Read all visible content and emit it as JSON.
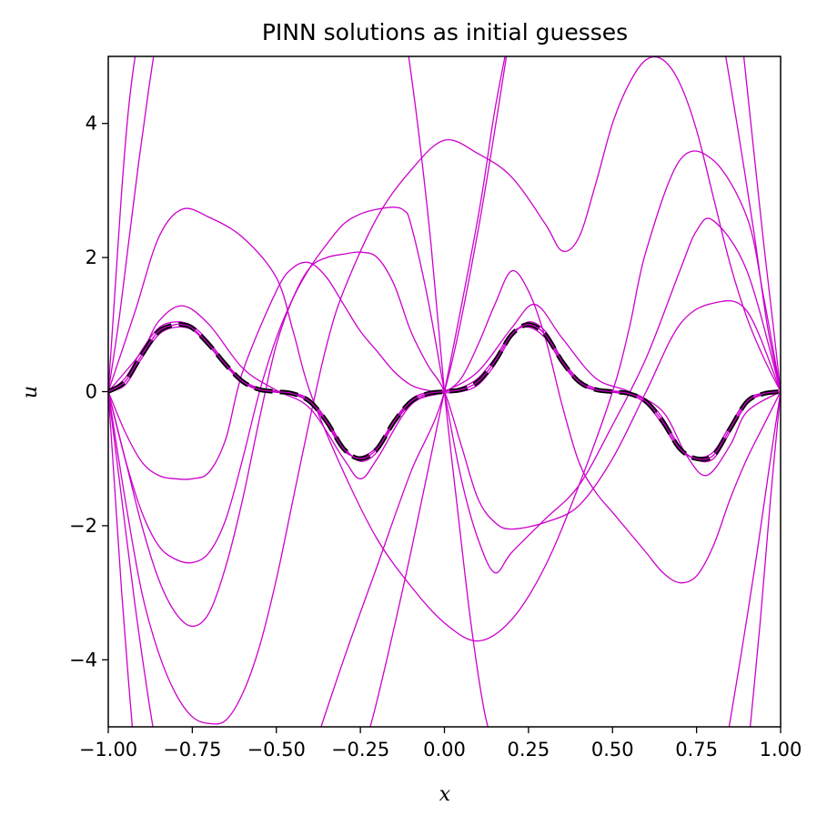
{
  "chart_data": {
    "type": "line",
    "title": "PINN solutions as initial guesses",
    "xlabel": "x",
    "ylabel": "u",
    "xlim": [
      -1.0,
      1.0
    ],
    "ylim": [
      -5,
      5
    ],
    "xticks": [
      -1.0,
      -0.75,
      -0.5,
      -0.25,
      0.0,
      0.25,
      0.5,
      0.75,
      1.0
    ],
    "xtick_labels": [
      "−1.00",
      "−0.75",
      "−0.50",
      "−0.25",
      "0.00",
      "0.25",
      "0.50",
      "0.75",
      "1.00"
    ],
    "yticks": [
      -4,
      -2,
      0,
      2,
      4
    ],
    "ytick_labels": [
      "−4",
      "−2",
      "0",
      "2",
      "4"
    ],
    "grid": false,
    "reference_color": "#000000",
    "guess_color": "#cc00cc",
    "reference": {
      "style": "dashed",
      "x": [
        -1.0,
        -0.95,
        -0.9,
        -0.85,
        -0.8,
        -0.78,
        -0.75,
        -0.7,
        -0.65,
        -0.6,
        -0.55,
        -0.5,
        -0.45,
        -0.4,
        -0.35,
        -0.3,
        -0.25,
        -0.2,
        -0.15,
        -0.1,
        -0.05,
        0.0,
        0.05,
        0.1,
        0.15,
        0.2,
        0.25,
        0.3,
        0.35,
        0.4,
        0.45,
        0.5,
        0.55,
        0.6,
        0.65,
        0.7,
        0.75,
        0.8,
        0.85,
        0.9,
        0.95,
        1.0
      ],
      "y": [
        0.0,
        0.15,
        0.55,
        0.9,
        1.0,
        1.0,
        0.95,
        0.7,
        0.4,
        0.15,
        0.03,
        0.0,
        -0.03,
        -0.15,
        -0.45,
        -0.85,
        -1.0,
        -0.85,
        -0.45,
        -0.15,
        -0.03,
        0.0,
        0.03,
        0.15,
        0.45,
        0.85,
        1.0,
        0.85,
        0.45,
        0.15,
        0.03,
        0.0,
        -0.03,
        -0.15,
        -0.45,
        -0.85,
        -1.0,
        -0.95,
        -0.55,
        -0.15,
        -0.03,
        0.0
      ]
    },
    "series": [
      {
        "x": [
          -1.0,
          -0.9,
          -0.85,
          -0.78,
          -0.7,
          -0.6,
          -0.5,
          -0.4,
          -0.3,
          -0.25,
          -0.2,
          -0.1,
          0.0,
          0.1,
          0.2,
          0.27,
          0.35,
          0.45,
          0.55,
          0.65,
          0.72,
          0.78,
          0.85,
          0.9,
          1.0
        ],
        "y": [
          0.0,
          0.6,
          1.05,
          1.28,
          1.0,
          0.35,
          0.02,
          -0.25,
          -1.0,
          -1.3,
          -1.0,
          -0.2,
          0.0,
          0.3,
          0.95,
          1.3,
          0.8,
          0.2,
          0.0,
          -0.3,
          -0.95,
          -1.25,
          -0.8,
          -0.3,
          0.0
        ]
      },
      {
        "x": [
          -1.0,
          -0.95,
          -0.9,
          -0.85,
          -0.8,
          -0.75,
          -0.7,
          -0.65,
          -0.6,
          -0.55,
          -0.5,
          -0.45,
          -0.4,
          -0.35,
          -0.3,
          -0.25,
          -0.2,
          -0.15,
          -0.1,
          -0.05,
          0.0,
          0.05,
          0.1,
          0.15,
          0.2,
          0.25,
          0.3,
          0.35,
          0.4,
          0.45,
          0.5,
          0.55,
          0.6,
          0.65,
          0.7,
          0.75,
          0.8,
          0.85,
          0.9,
          0.95,
          1.0
        ],
        "y": [
          0.0,
          0.1,
          0.5,
          0.85,
          0.96,
          0.92,
          0.68,
          0.38,
          0.14,
          0.02,
          -0.01,
          -0.04,
          -0.17,
          -0.48,
          -0.88,
          -0.97,
          -0.82,
          -0.43,
          -0.12,
          -0.01,
          0.02,
          0.06,
          0.2,
          0.5,
          0.88,
          0.96,
          0.8,
          0.42,
          0.12,
          0.02,
          -0.01,
          -0.05,
          -0.18,
          -0.5,
          -0.88,
          -0.98,
          -0.9,
          -0.5,
          -0.12,
          -0.02,
          0.0
        ]
      },
      {
        "x": [
          -1.0,
          -0.95,
          -0.9,
          -0.85,
          -0.8,
          -0.75,
          -0.7,
          -0.65,
          -0.6,
          -0.55,
          -0.5,
          -0.45,
          -0.4,
          -0.35,
          -0.3,
          -0.25,
          -0.2,
          -0.15,
          -0.1,
          -0.05,
          0.0,
          0.05,
          0.1,
          0.15,
          0.2,
          0.25,
          0.3,
          0.35,
          0.4,
          0.45,
          0.5,
          0.55,
          0.6,
          0.65,
          0.7,
          0.75,
          0.8,
          0.85,
          0.9,
          0.95,
          1.0
        ],
        "y": [
          0.0,
          0.2,
          0.62,
          0.95,
          1.04,
          0.98,
          0.74,
          0.42,
          0.17,
          0.05,
          0.01,
          -0.02,
          -0.12,
          -0.42,
          -0.82,
          -1.04,
          -0.9,
          -0.48,
          -0.18,
          -0.05,
          -0.02,
          0.0,
          0.1,
          0.4,
          0.82,
          1.04,
          0.9,
          0.48,
          0.18,
          0.05,
          0.01,
          -0.01,
          -0.12,
          -0.4,
          -0.82,
          -1.02,
          -1.0,
          -0.6,
          -0.18,
          -0.04,
          0.0
        ]
      },
      {
        "x": [
          -1.0,
          -0.92,
          -0.85,
          -0.78,
          -0.7,
          -0.6,
          -0.5,
          -0.45,
          -0.4,
          -0.3,
          -0.2,
          -0.1,
          0.0,
          0.1,
          0.2,
          0.3,
          0.4,
          0.5,
          0.55,
          0.6,
          0.7,
          0.8,
          0.9,
          0.95,
          1.0
        ],
        "y": [
          0.0,
          1.2,
          2.3,
          2.72,
          2.6,
          2.3,
          1.7,
          0.9,
          0.0,
          -1.2,
          -2.2,
          -2.9,
          -3.45,
          -3.72,
          -3.4,
          -2.6,
          -1.4,
          0.0,
          0.95,
          2.1,
          3.45,
          3.45,
          2.6,
          1.4,
          0.0
        ]
      },
      {
        "x": [
          -1.0,
          -0.95,
          -0.9,
          -0.85,
          -0.8,
          -0.75,
          -0.7,
          -0.65,
          -0.6,
          -0.55,
          -0.5,
          -0.45,
          -0.4,
          -0.35,
          -0.3,
          -0.25,
          -0.2,
          -0.15,
          -0.1,
          -0.05,
          0.0,
          0.05,
          0.1,
          0.15,
          0.2,
          0.3,
          0.4,
          0.5,
          0.6,
          0.7,
          0.8,
          0.9,
          1.0
        ],
        "y": [
          0.0,
          -1.0,
          -2.0,
          -2.8,
          -3.3,
          -3.5,
          -3.3,
          -2.6,
          -1.6,
          -0.4,
          0.7,
          1.4,
          1.85,
          2.0,
          2.05,
          2.08,
          2.0,
          1.6,
          0.9,
          0.4,
          0.0,
          -0.8,
          -1.6,
          -1.95,
          -2.05,
          -1.95,
          -1.7,
          -1.0,
          0.0,
          1.0,
          1.32,
          1.2,
          0.0
        ]
      },
      {
        "x": [
          -1.0,
          -0.95,
          -0.9,
          -0.85,
          -0.8,
          -0.75,
          -0.7,
          -0.65,
          -0.6,
          -0.55,
          -0.5,
          -0.45,
          -0.4,
          -0.35,
          -0.3,
          -0.25,
          -0.2,
          -0.15,
          -0.12,
          -0.1,
          -0.05,
          0.0,
          0.05,
          0.1,
          0.15,
          0.2,
          0.3,
          0.4,
          0.5,
          0.6,
          0.7,
          0.75,
          0.8,
          0.9,
          1.0
        ],
        "y": [
          0.0,
          -1.0,
          -1.8,
          -2.3,
          -2.5,
          -2.55,
          -2.4,
          -1.9,
          -1.0,
          0.0,
          0.8,
          1.4,
          1.85,
          2.2,
          2.5,
          2.65,
          2.72,
          2.75,
          2.7,
          2.5,
          1.4,
          0.0,
          -1.3,
          -2.2,
          -2.7,
          -2.4,
          -1.9,
          -1.4,
          -0.5,
          0.5,
          1.8,
          2.4,
          2.55,
          1.8,
          0.0
        ]
      },
      {
        "x": [
          -1.0,
          -0.95,
          -0.9,
          -0.85,
          -0.8,
          -0.75,
          -0.7,
          -0.65,
          -0.6,
          -0.5,
          -0.45,
          -0.4,
          -0.35,
          -0.3,
          -0.25,
          -0.2,
          -0.15,
          -0.1,
          -0.05,
          0.0,
          0.05,
          0.1,
          0.15,
          0.2,
          0.25,
          0.3,
          0.35,
          0.4,
          0.45,
          0.5,
          0.55,
          0.6,
          0.65,
          0.7,
          0.75,
          0.8,
          0.85,
          0.9,
          0.95,
          1.0
        ],
        "y": [
          0.0,
          -0.6,
          -1.05,
          -1.25,
          -1.3,
          -1.3,
          -1.2,
          -0.7,
          0.3,
          1.5,
          1.85,
          1.92,
          1.7,
          1.3,
          0.9,
          0.6,
          0.3,
          0.1,
          0.02,
          0.0,
          0.2,
          0.7,
          1.3,
          1.8,
          1.5,
          0.8,
          -0.2,
          -1.05,
          -1.5,
          -1.8,
          -2.1,
          -2.4,
          -2.7,
          -2.85,
          -2.75,
          -2.3,
          -1.6,
          -1.0,
          -0.5,
          0.0
        ]
      },
      {
        "x": [
          -1.0,
          -0.95,
          -0.9,
          -0.85,
          -0.8,
          -0.75,
          -0.7,
          -0.65,
          -0.6,
          -0.55,
          -0.5,
          -0.45,
          -0.4,
          -0.35,
          -0.3,
          -0.2,
          -0.1,
          0.0,
          0.1,
          0.2,
          0.3,
          0.35,
          0.4,
          0.45,
          0.5,
          0.55,
          0.6,
          0.65,
          0.7,
          0.75,
          0.8,
          0.85,
          0.9,
          0.95,
          1.0
        ],
        "y": [
          0.0,
          -1.6,
          -3.0,
          -3.9,
          -4.5,
          -4.85,
          -4.95,
          -4.9,
          -4.5,
          -3.8,
          -2.8,
          -1.6,
          -0.4,
          0.7,
          1.5,
          2.6,
          3.3,
          3.75,
          3.55,
          3.2,
          2.5,
          2.1,
          2.3,
          3.1,
          4.0,
          4.6,
          4.95,
          4.95,
          4.6,
          3.9,
          2.9,
          1.9,
          1.1,
          0.5,
          0.0
        ]
      },
      {
        "x": [
          -1.0,
          -0.98,
          -0.96,
          -0.94,
          -0.92,
          -0.9
        ],
        "y": [
          0.0,
          1.5,
          3.0,
          4.2,
          5.0,
          5.5
        ]
      },
      {
        "x": [
          -1.0,
          -0.97,
          -0.94,
          -0.91,
          -0.88,
          -0.85
        ],
        "y": [
          0.0,
          1.0,
          2.2,
          3.4,
          4.5,
          5.5
        ]
      },
      {
        "x": [
          -1.0,
          -0.98,
          -0.96,
          -0.94,
          -0.92
        ],
        "y": [
          0.0,
          -1.5,
          -3.0,
          -4.3,
          -5.5
        ]
      },
      {
        "x": [
          -1.0,
          -0.96,
          -0.92,
          -0.88,
          -0.85
        ],
        "y": [
          0.0,
          -1.6,
          -3.2,
          -4.6,
          -5.5
        ]
      },
      {
        "x": [
          -0.12,
          -0.08,
          -0.04,
          0.0,
          0.04,
          0.08,
          0.12,
          0.16
        ],
        "y": [
          5.5,
          4.0,
          2.2,
          0.0,
          -1.8,
          -3.5,
          -4.8,
          -5.5
        ]
      },
      {
        "x": [
          -0.25,
          -0.2,
          -0.1,
          0.0,
          0.1,
          0.15,
          0.2
        ],
        "y": [
          -5.5,
          -4.6,
          -2.4,
          0.0,
          2.6,
          4.2,
          5.5
        ]
      },
      {
        "x": [
          -0.4,
          -0.3,
          -0.2,
          -0.1,
          0.0,
          0.1,
          0.2
        ],
        "y": [
          -5.5,
          -4.0,
          -2.6,
          -1.2,
          0.0,
          2.4,
          5.5
        ]
      },
      {
        "x": [
          0.88,
          0.92,
          0.95,
          0.98,
          1.0
        ],
        "y": [
          5.5,
          3.6,
          2.2,
          0.9,
          0.0
        ]
      },
      {
        "x": [
          0.82,
          0.87,
          0.92,
          0.96,
          1.0
        ],
        "y": [
          5.5,
          4.0,
          2.4,
          1.0,
          0.0
        ]
      },
      {
        "x": [
          0.9,
          0.94,
          0.97,
          1.0
        ],
        "y": [
          -5.5,
          -3.4,
          -1.6,
          0.0
        ]
      },
      {
        "x": [
          0.83,
          0.88,
          0.93,
          0.97,
          1.0
        ],
        "y": [
          -5.5,
          -4.0,
          -2.4,
          -1.0,
          0.0
        ]
      }
    ]
  }
}
